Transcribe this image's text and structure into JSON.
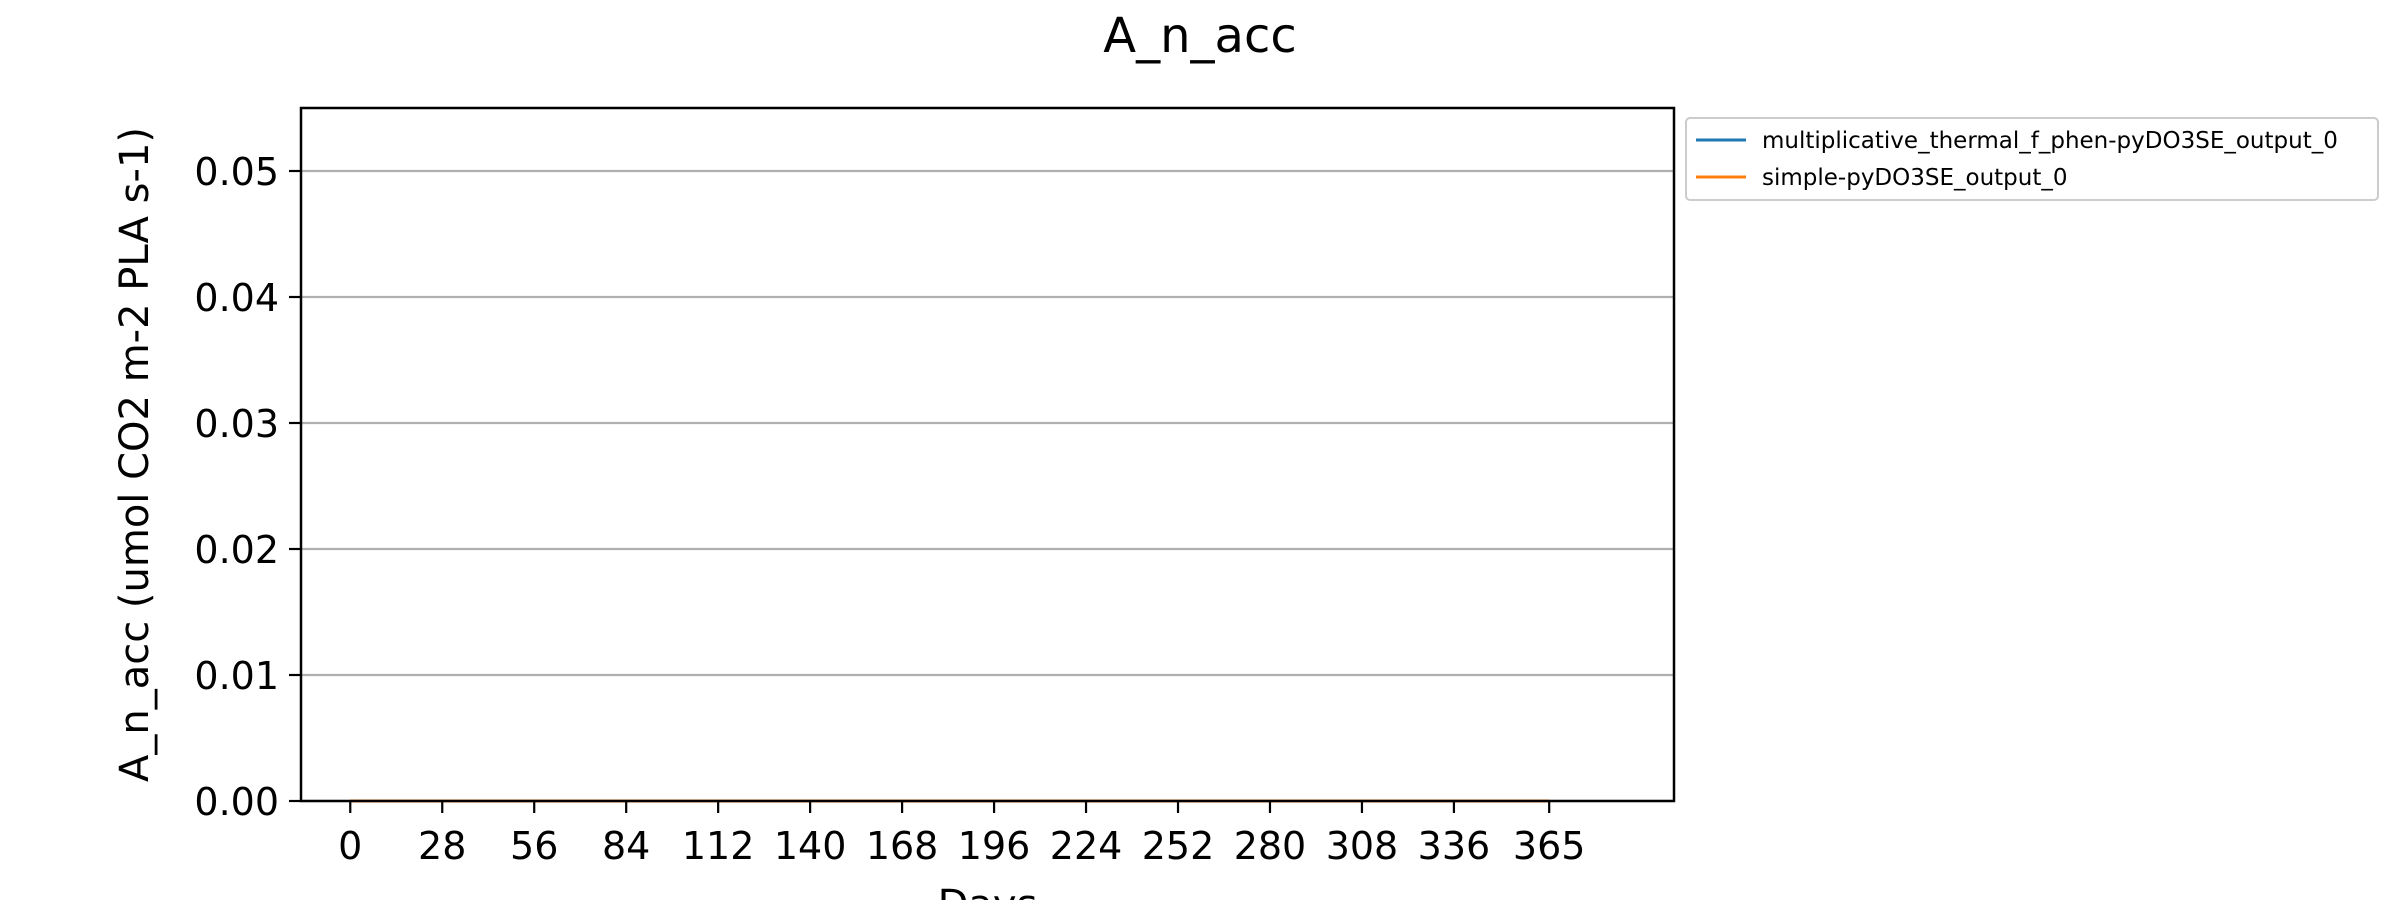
{
  "chart_data": {
    "type": "line",
    "title": "A_n_acc",
    "xlabel": "Days",
    "ylabel": "A_n_acc (umol CO2 m-2 PLA s-1)",
    "xlim": [
      -15,
      403
    ],
    "ylim": [
      0,
      0.055
    ],
    "x_ticks": [
      0,
      28,
      56,
      84,
      112,
      140,
      168,
      196,
      224,
      252,
      280,
      308,
      336,
      365
    ],
    "x_tick_labels": [
      "0",
      "28",
      "56",
      "84",
      "112",
      "140",
      "168",
      "196",
      "224",
      "252",
      "280",
      "308",
      "336",
      "365"
    ],
    "y_ticks": [
      0.0,
      0.01,
      0.02,
      0.03,
      0.04,
      0.05
    ],
    "y_tick_labels": [
      "0.00",
      "0.01",
      "0.02",
      "0.03",
      "0.04",
      "0.05"
    ],
    "grid": "y-major",
    "legend_position": "outside-top-right",
    "series": [
      {
        "name": "multiplicative_thermal_f_phen-pyDO3SE_output_0",
        "color": "#1f77b4",
        "x": [
          0,
          28,
          56,
          84,
          112,
          140,
          168,
          196,
          224,
          252,
          280,
          308,
          336,
          365
        ],
        "y": [
          0,
          0,
          0,
          0,
          0,
          0,
          0,
          0,
          0,
          0,
          0,
          0,
          0,
          0
        ]
      },
      {
        "name": "simple-pyDO3SE_output_0",
        "color": "#ff7f0e",
        "x": [
          0,
          28,
          56,
          84,
          112,
          140,
          168,
          196,
          224,
          252,
          280,
          308,
          336,
          365
        ],
        "y": [
          0,
          0,
          0,
          0,
          0,
          0,
          0,
          0,
          0,
          0,
          0,
          0,
          0,
          0
        ]
      }
    ]
  }
}
